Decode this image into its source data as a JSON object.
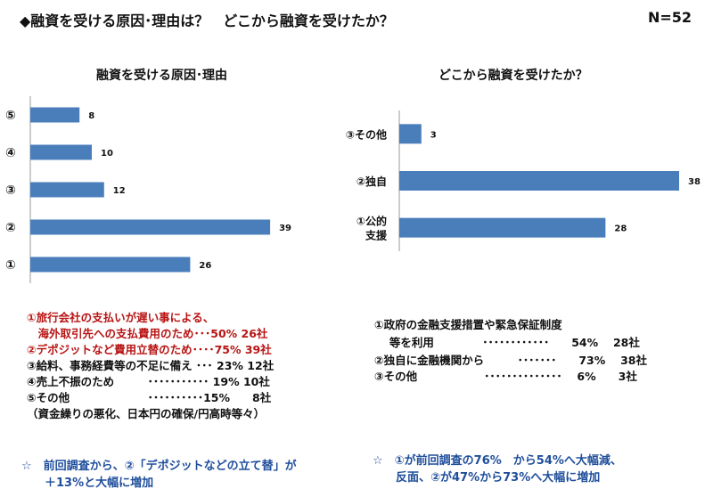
{
  "header": {
    "title": "◆融資を受ける原因･理由は？　どこから融資を受けたか？",
    "sample_size": "N=52"
  },
  "chart_data": [
    {
      "type": "bar",
      "orientation": "horizontal",
      "title": "融資を受ける原因･理由",
      "categories": [
        "⑤",
        "④",
        "③",
        "②",
        "①"
      ],
      "values": [
        8,
        10,
        12,
        39,
        26
      ],
      "xlim": [
        0,
        40
      ],
      "bar_color": "#4a7ebb",
      "grid": false
    },
    {
      "type": "bar",
      "orientation": "horizontal",
      "title": "どこから融資を受けたか？",
      "categories": [
        "③その他",
        "②独自",
        "①公的\n支援"
      ],
      "values": [
        3,
        38,
        28
      ],
      "xlim": [
        0,
        38
      ],
      "bar_color": "#4a7ebb",
      "grid": false
    }
  ],
  "left_notes": [
    {
      "text": "①旅行会社の支払いが遅い事による、",
      "color": "red"
    },
    {
      "text": "　海外取引先への支払費用のため･･･50%  26社",
      "color": "red"
    },
    {
      "text": "②デポジットなど費用立替のため････75%  39社",
      "color": "red"
    },
    {
      "text": "③給料、事務経費等の不足に備え ･･･ 23%  12社",
      "color": "black"
    },
    {
      "text": "④売上不振のため　　　･･･････････ 19%  10社",
      "color": "black"
    },
    {
      "text": "⑤その他　　　　　　　･･････････15%　　8社",
      "color": "black"
    },
    {
      "text": "（資金繰りの悪化、日本円の確保/円高時等々）",
      "color": "black"
    }
  ],
  "right_notes": [
    {
      "text": "①政府の金融支援措置や緊急保証制度"
    },
    {
      "text": "　 等を利用　　　　 ････････････　　54%　 28社"
    },
    {
      "text": "②独自に金融機関から　　　･･･････　　73%　 38社"
    },
    {
      "text": "③その他　　　　　　･･････････････ 　6%　　3社"
    }
  ],
  "footnotes": {
    "left": [
      "☆　前回調査から、②「デポジットなどの立て替」が",
      "　　＋13%と大幅に増加"
    ],
    "right": [
      "☆　①が前回調査の76%　から54%へ大幅減、",
      "　　反面、②が47%から73%へ大幅に増加"
    ]
  }
}
